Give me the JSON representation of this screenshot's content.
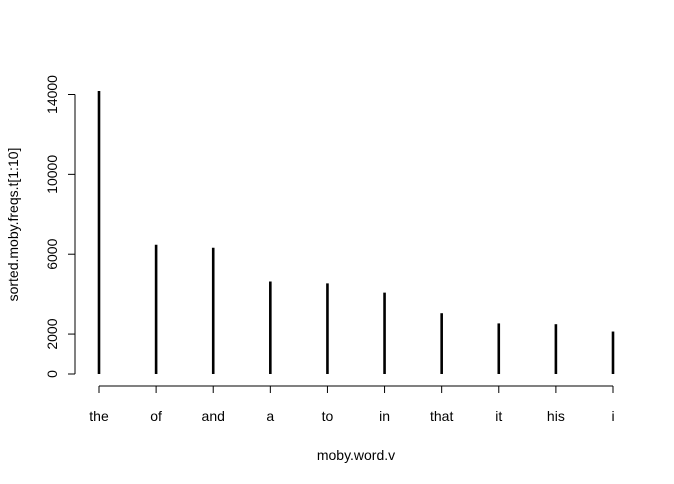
{
  "chart_data": {
    "type": "bar",
    "style": "vertical-line-spikes",
    "title": "",
    "xlabel": "moby.word.v",
    "ylabel": "sorted.moby.freqs.t[1:10]",
    "categories": [
      "the",
      "of",
      "and",
      "a",
      "to",
      "in",
      "that",
      "it",
      "his",
      "i"
    ],
    "values": [
      14175,
      6471,
      6325,
      4636,
      4539,
      4077,
      3045,
      2534,
      2495,
      2127
    ],
    "ylim": [
      0,
      14175
    ],
    "yticks": [
      0,
      2000,
      6000,
      10000,
      14000
    ],
    "ytick_labels": [
      "0",
      "2000",
      "6000",
      "10000",
      "14000"
    ],
    "grid": false,
    "legend": "none",
    "colors": {
      "lines": "#000000",
      "background": "#ffffff"
    }
  }
}
